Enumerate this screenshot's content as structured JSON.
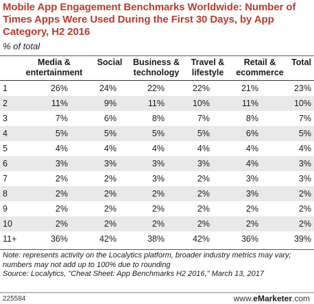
{
  "title": "Mobile App Engagement Benchmarks Worldwide: Number of Times Apps Were Used During the First 30 Days, by App Category, H2 2016",
  "subtitle": "% of total",
  "note": "Note: represents activity on the Localytics platform, broader industry metrics may vary; numbers may not add up to 100% due to rounding",
  "source": "Source: Localytics, \"Cheat Sheet: App Benchmarks H2 2016,\" March 13, 2017",
  "footer_id": "225584",
  "brand_prefix": "www.",
  "brand_name": "eMarketer",
  "brand_suffix": ".com",
  "chart_data": {
    "type": "table",
    "columns": [
      "",
      "Media & entertainment",
      "Social",
      "Business & technology",
      "Travel & lifestyle",
      "Retail & ecommerce",
      "Total"
    ],
    "rows": [
      [
        "1",
        "26%",
        "24%",
        "22%",
        "22%",
        "21%",
        "23%"
      ],
      [
        "2",
        "11%",
        "9%",
        "11%",
        "10%",
        "11%",
        "10%"
      ],
      [
        "3",
        "7%",
        "6%",
        "8%",
        "7%",
        "8%",
        "7%"
      ],
      [
        "4",
        "5%",
        "5%",
        "5%",
        "5%",
        "6%",
        "5%"
      ],
      [
        "5",
        "4%",
        "4%",
        "4%",
        "4%",
        "4%",
        "4%"
      ],
      [
        "6",
        "3%",
        "3%",
        "3%",
        "3%",
        "4%",
        "3%"
      ],
      [
        "7",
        "2%",
        "2%",
        "3%",
        "2%",
        "3%",
        "3%"
      ],
      [
        "8",
        "2%",
        "2%",
        "2%",
        "2%",
        "3%",
        "2%"
      ],
      [
        "9",
        "2%",
        "2%",
        "2%",
        "2%",
        "2%",
        "2%"
      ],
      [
        "10",
        "2%",
        "2%",
        "2%",
        "2%",
        "2%",
        "2%"
      ],
      [
        "11+",
        "36%",
        "42%",
        "38%",
        "42%",
        "36%",
        "39%"
      ]
    ]
  }
}
